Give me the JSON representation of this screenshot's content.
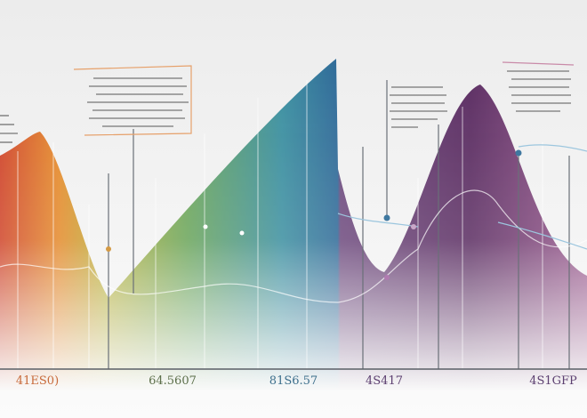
{
  "axis_labels": [
    "41ES0)",
    "64.5607",
    "81S6.57",
    "4S417",
    "4S1GFP"
  ]
}
